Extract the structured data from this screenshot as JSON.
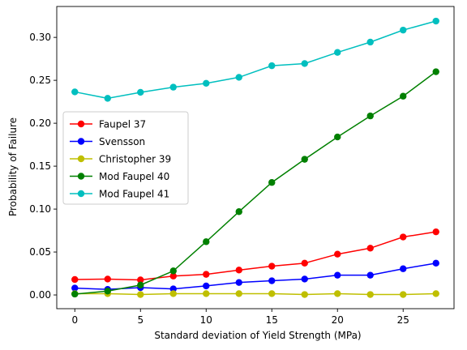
{
  "chart_data": {
    "type": "line",
    "title": "",
    "xlabel": "Standard deviation of Yield Strength (MPa)",
    "ylabel": "Probability of Failure",
    "xlim": [
      -1.375,
      28.875
    ],
    "ylim": [
      -0.016,
      0.336
    ],
    "xticks": [
      0,
      5,
      10,
      15,
      20,
      25
    ],
    "xtick_labels": [
      "0",
      "5",
      "10",
      "15",
      "20",
      "25"
    ],
    "yticks": [
      0.0,
      0.05,
      0.1,
      0.15,
      0.2,
      0.25,
      0.3
    ],
    "ytick_labels": [
      "0.00",
      "0.05",
      "0.10",
      "0.15",
      "0.20",
      "0.25",
      "0.30"
    ],
    "grid": false,
    "legend_position": "center-left",
    "x": [
      0,
      2.5,
      5,
      7.5,
      10,
      12.5,
      15,
      17.5,
      20,
      22.5,
      25,
      27.5
    ],
    "series": [
      {
        "name": "Faupel 37",
        "color": "#ff0000",
        "values": [
          0.018,
          0.0185,
          0.0175,
          0.022,
          0.024,
          0.029,
          0.0335,
          0.037,
          0.0475,
          0.0545,
          0.0675,
          0.0735
        ]
      },
      {
        "name": "Svensson",
        "color": "#0000ff",
        "values": [
          0.008,
          0.0065,
          0.0085,
          0.007,
          0.0105,
          0.0145,
          0.0165,
          0.0185,
          0.023,
          0.023,
          0.0305,
          0.037
        ]
      },
      {
        "name": "Christopher 39",
        "color": "#bfbf00",
        "values": [
          0.0015,
          0.0015,
          0.0005,
          0.0015,
          0.0015,
          0.0015,
          0.0015,
          0.0005,
          0.0015,
          0.0005,
          0.0005,
          0.0015
        ]
      },
      {
        "name": "Mod Faupel 40",
        "color": "#008000",
        "values": [
          0.001,
          0.0045,
          0.0115,
          0.028,
          0.062,
          0.097,
          0.131,
          0.158,
          0.184,
          0.2085,
          0.2315,
          0.26
        ]
      },
      {
        "name": "Mod Faupel 41",
        "color": "#00bfbf",
        "values": [
          0.2365,
          0.229,
          0.236,
          0.242,
          0.2465,
          0.2535,
          0.267,
          0.2695,
          0.2825,
          0.2945,
          0.3085,
          0.319
        ]
      }
    ]
  }
}
